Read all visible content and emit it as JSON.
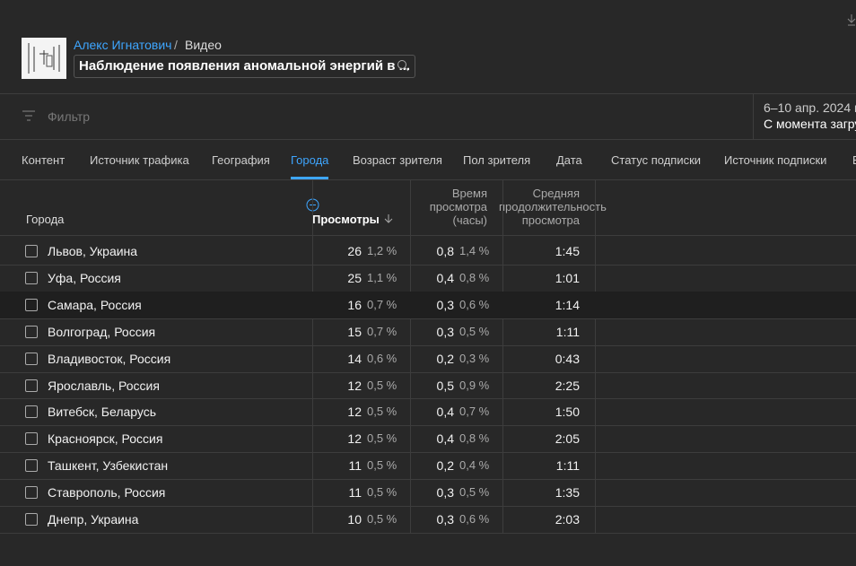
{
  "header": {
    "channel": "Алекс Игнатович",
    "separator": "/",
    "section": "Видео",
    "video_title": "Наблюдение появления аномальной энергий в ..."
  },
  "filter": {
    "placeholder": "Фильтр"
  },
  "date": {
    "range": "6–10 апр. 2024 г",
    "label": "С момента загру"
  },
  "tabs": [
    "Контент",
    "Источник трафика",
    "География",
    "Города",
    "Возраст зрителя",
    "Пол зрителя",
    "Дата",
    "Статус подписки",
    "Источник подписки",
    "В"
  ],
  "active_tab": "Города",
  "table": {
    "columns": [
      "Города",
      "Просмотры",
      "Время просмотра (часы)",
      "Средняя продолжительность просмотра"
    ],
    "rows": [
      [
        "Львов, Украина",
        "26",
        "1,2 %",
        "0,8",
        "1,4 %",
        "1:45"
      ],
      [
        "Уфа, Россия",
        "25",
        "1,1 %",
        "0,4",
        "0,8 %",
        "1:01"
      ],
      [
        "Самара, Россия",
        "16",
        "0,7 %",
        "0,3",
        "0,6 %",
        "1:14"
      ],
      [
        "Волгоград, Россия",
        "15",
        "0,7 %",
        "0,3",
        "0,5 %",
        "1:11"
      ],
      [
        "Владивосток, Россия",
        "14",
        "0,6 %",
        "0,2",
        "0,3 %",
        "0:43"
      ],
      [
        "Ярославль, Россия",
        "12",
        "0,5 %",
        "0,5",
        "0,9 %",
        "2:25"
      ],
      [
        "Витебск, Беларусь",
        "12",
        "0,5 %",
        "0,4",
        "0,7 %",
        "1:50"
      ],
      [
        "Красноярск, Россия",
        "12",
        "0,5 %",
        "0,4",
        "0,8 %",
        "2:05"
      ],
      [
        "Ташкент, Узбекистан",
        "11",
        "0,5 %",
        "0,2",
        "0,4 %",
        "1:11"
      ],
      [
        "Ставрополь, Россия",
        "11",
        "0,5 %",
        "0,3",
        "0,5 %",
        "1:35"
      ],
      [
        "Днепр, Украина",
        "10",
        "0,5 %",
        "0,3",
        "0,6 %",
        "2:03"
      ]
    ],
    "highlighted_row": 2
  }
}
